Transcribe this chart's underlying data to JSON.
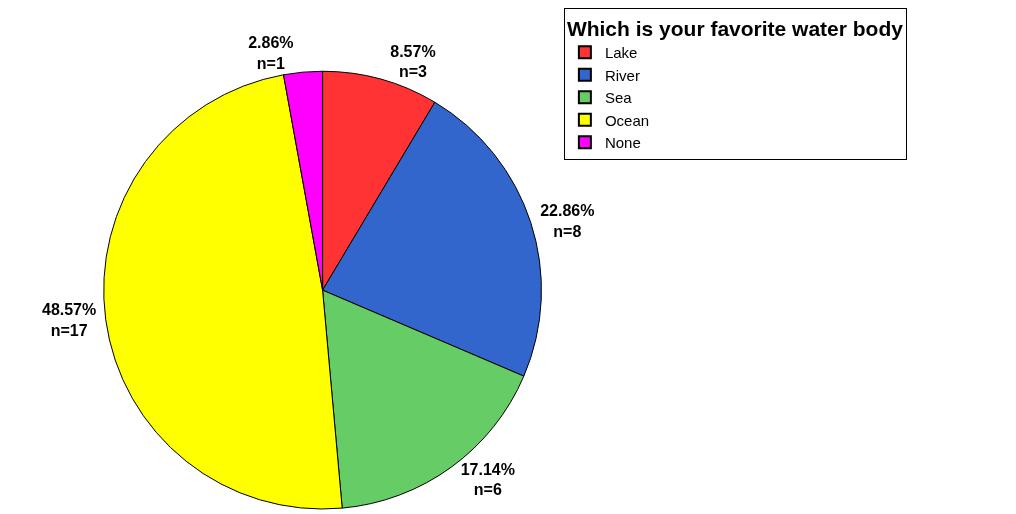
{
  "chart_data": {
    "type": "pie",
    "legend_title": "Which is your favorite water body",
    "categories": [
      "Lake",
      "River",
      "Sea",
      "Ocean",
      "None"
    ],
    "values": [
      3,
      8,
      6,
      17,
      1
    ],
    "value_labels": [
      "8.57%\nn=3",
      "22.86%\nn=8",
      "17.14%\nn=6",
      "48.57%\nn=17",
      "2.86%\nn=1"
    ],
    "colors": [
      "#ff3333",
      "#3366cc",
      "#66cc66",
      "#ffff00",
      "#ff00ff"
    ],
    "legend": "top right"
  }
}
